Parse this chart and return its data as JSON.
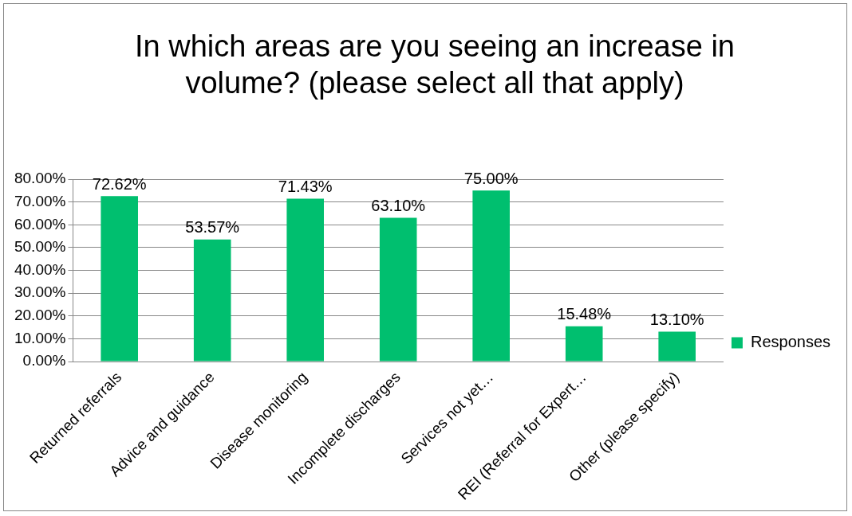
{
  "chart_data": {
    "type": "bar",
    "title": "In which areas are you seeing an increase in volume? (please select all that apply)",
    "categories": [
      "Returned referrals",
      "Advice and guidance",
      "Disease monitoring",
      "Incomplete discharges",
      "Services not yet…",
      "REI (Referral for Expert…",
      "Other (please specify)"
    ],
    "series": [
      {
        "name": "Responses",
        "color": "#00bf6f",
        "values": [
          72.62,
          53.57,
          71.43,
          63.1,
          75,
          15.48,
          13.1
        ]
      }
    ],
    "value_labels": [
      "72.62%",
      "53.57%",
      "71.43%",
      "63.10%",
      "75.00%",
      "15.48%",
      "13.10%"
    ],
    "ylim": [
      0,
      80
    ],
    "yticks": [
      {
        "value": 0,
        "label": "0.00%"
      },
      {
        "value": 10,
        "label": "10.00%"
      },
      {
        "value": 20,
        "label": "20.00%"
      },
      {
        "value": 30,
        "label": "30.00%"
      },
      {
        "value": 40,
        "label": "40.00%"
      },
      {
        "value": 50,
        "label": "50.00%"
      },
      {
        "value": 60,
        "label": "60.00%"
      },
      {
        "value": 70,
        "label": "70.00%"
      },
      {
        "value": 80,
        "label": "80.00%"
      }
    ],
    "grid": "y",
    "legend": "right"
  }
}
